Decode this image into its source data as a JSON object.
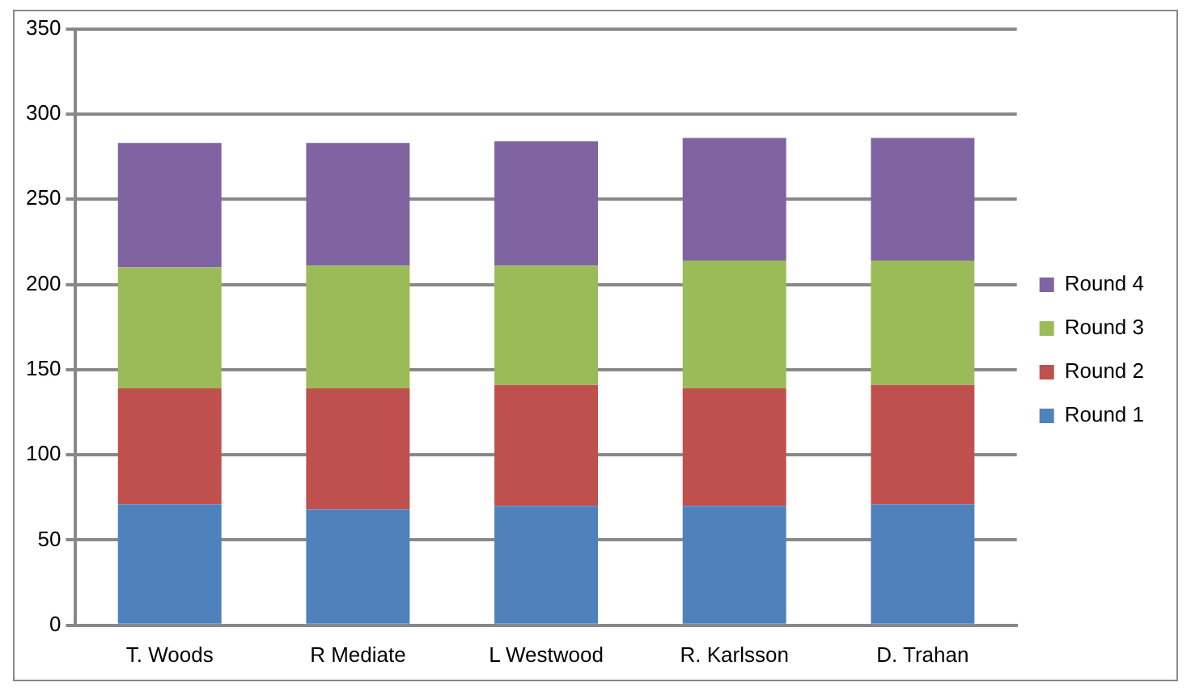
{
  "chart_data": {
    "type": "bar",
    "stacked": true,
    "categories": [
      "T. Woods",
      "R Mediate",
      "L Westwood",
      "R. Karlsson",
      "D. Trahan"
    ],
    "series": [
      {
        "name": "Round 1",
        "color": "#4f81bd",
        "values": [
          71,
          68,
          70,
          70,
          71
        ]
      },
      {
        "name": "Round 2",
        "color": "#c0504d",
        "values": [
          68,
          71,
          71,
          69,
          70
        ]
      },
      {
        "name": "Round 3",
        "color": "#9bbb59",
        "values": [
          71,
          72,
          70,
          75,
          73
        ]
      },
      {
        "name": "Round 4",
        "color": "#8064a2",
        "values": [
          73,
          72,
          73,
          72,
          72
        ]
      }
    ],
    "ylim": [
      0,
      350
    ],
    "yticks": [
      0,
      50,
      100,
      150,
      200,
      250,
      300,
      350
    ],
    "grid": "y",
    "legend": "right"
  }
}
